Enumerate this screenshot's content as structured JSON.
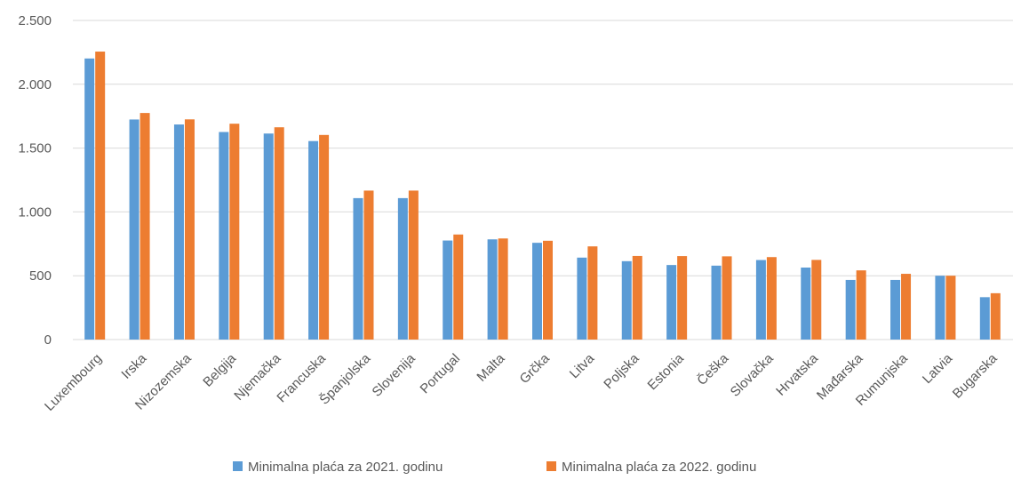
{
  "chart_data": {
    "type": "bar",
    "categories": [
      "Luxembourg",
      "Irska",
      "Nizozemska",
      "Belgija",
      "Njemačka",
      "Francuska",
      "Španjolska",
      "Slovenija",
      "Portugal",
      "Malta",
      "Grčka",
      "Litva",
      "Poljska",
      "Estonia",
      "Češka",
      "Slovačka",
      "Hrvatska",
      "Mađarska",
      "Rumunjska",
      "Latvia",
      "Bugarska"
    ],
    "series": [
      {
        "name": "Minimalna plaća za 2021. godinu",
        "color": "#5b9bd5",
        "values": [
          2202,
          1724,
          1685,
          1626,
          1614,
          1555,
          1108,
          1108,
          776,
          785,
          758,
          642,
          614,
          584,
          579,
          623,
          564,
          467,
          467,
          500,
          332
        ]
      },
      {
        "name": "Minimalna plaća za 2022. godinu",
        "color": "#ed7d31",
        "values": [
          2256,
          1775,
          1725,
          1691,
          1663,
          1603,
          1167,
          1167,
          823,
          792,
          774,
          730,
          655,
          654,
          652,
          646,
          624,
          542,
          515,
          500,
          363
        ]
      }
    ],
    "ylim": [
      0,
      2500
    ],
    "yticks": [
      0,
      500,
      {
        "value": 1000,
        "label": "1.000"
      },
      {
        "value": 1500,
        "label": "1.500"
      },
      {
        "value": 2000,
        "label": "2.000"
      },
      {
        "value": 2500,
        "label": "2.500"
      }
    ],
    "grid": true
  }
}
